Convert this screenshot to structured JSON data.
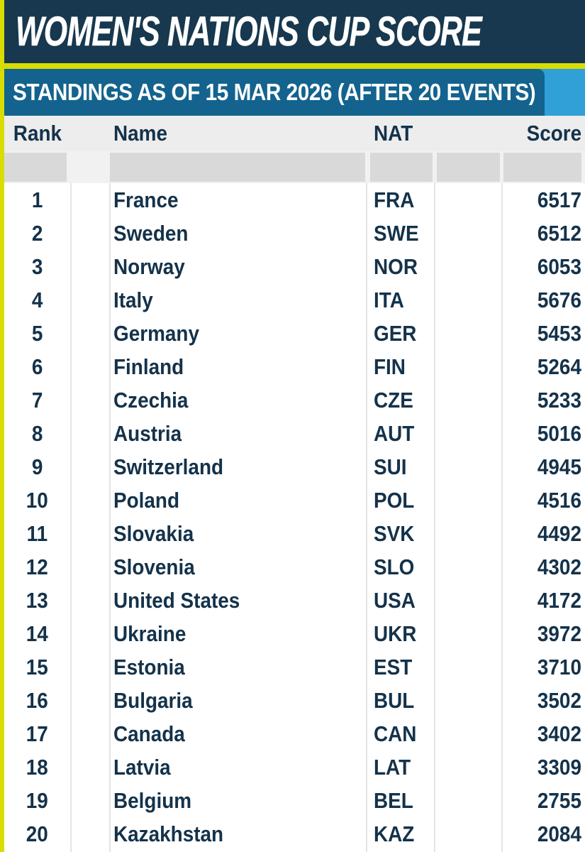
{
  "colors": {
    "navy_header_bg": "#17384e",
    "yellow_accent": "#d8dc00",
    "bar_dark_blue": "#13638e",
    "bar_light_blue": "#30a0d6",
    "text_dark": "#14324a",
    "header_row_bg": "#ededed",
    "filter_row_bg": "#f1f1f1",
    "filter_box_gray": "#d9d9d9",
    "separator_gray": "#e4e4e4"
  },
  "chart_data": {
    "type": "table",
    "title": "WOMEN'S NATIONS CUP SCORE",
    "subtitle": "STANDINGS AS OF 15 MAR 2026 (AFTER 20 EVENTS)",
    "columns": [
      "Rank",
      "Name",
      "NAT",
      "Score"
    ],
    "rows": [
      {
        "rank": 1,
        "name": "France",
        "nat": "FRA",
        "score": 6517
      },
      {
        "rank": 2,
        "name": "Sweden",
        "nat": "SWE",
        "score": 6512
      },
      {
        "rank": 3,
        "name": "Norway",
        "nat": "NOR",
        "score": 6053
      },
      {
        "rank": 4,
        "name": "Italy",
        "nat": "ITA",
        "score": 5676
      },
      {
        "rank": 5,
        "name": "Germany",
        "nat": "GER",
        "score": 5453
      },
      {
        "rank": 6,
        "name": "Finland",
        "nat": "FIN",
        "score": 5264
      },
      {
        "rank": 7,
        "name": "Czechia",
        "nat": "CZE",
        "score": 5233
      },
      {
        "rank": 8,
        "name": "Austria",
        "nat": "AUT",
        "score": 5016
      },
      {
        "rank": 9,
        "name": "Switzerland",
        "nat": "SUI",
        "score": 4945
      },
      {
        "rank": 10,
        "name": "Poland",
        "nat": "POL",
        "score": 4516
      },
      {
        "rank": 11,
        "name": "Slovakia",
        "nat": "SVK",
        "score": 4492
      },
      {
        "rank": 12,
        "name": "Slovenia",
        "nat": "SLO",
        "score": 4302
      },
      {
        "rank": 13,
        "name": "United States",
        "nat": "USA",
        "score": 4172
      },
      {
        "rank": 14,
        "name": "Ukraine",
        "nat": "UKR",
        "score": 3972
      },
      {
        "rank": 15,
        "name": "Estonia",
        "nat": "EST",
        "score": 3710
      },
      {
        "rank": 16,
        "name": "Bulgaria",
        "nat": "BUL",
        "score": 3502
      },
      {
        "rank": 17,
        "name": "Canada",
        "nat": "CAN",
        "score": 3402
      },
      {
        "rank": 18,
        "name": "Latvia",
        "nat": "LAT",
        "score": 3309
      },
      {
        "rank": 19,
        "name": "Belgium",
        "nat": "BEL",
        "score": 2755
      },
      {
        "rank": 20,
        "name": "Kazakhstan",
        "nat": "KAZ",
        "score": 2084
      }
    ]
  }
}
